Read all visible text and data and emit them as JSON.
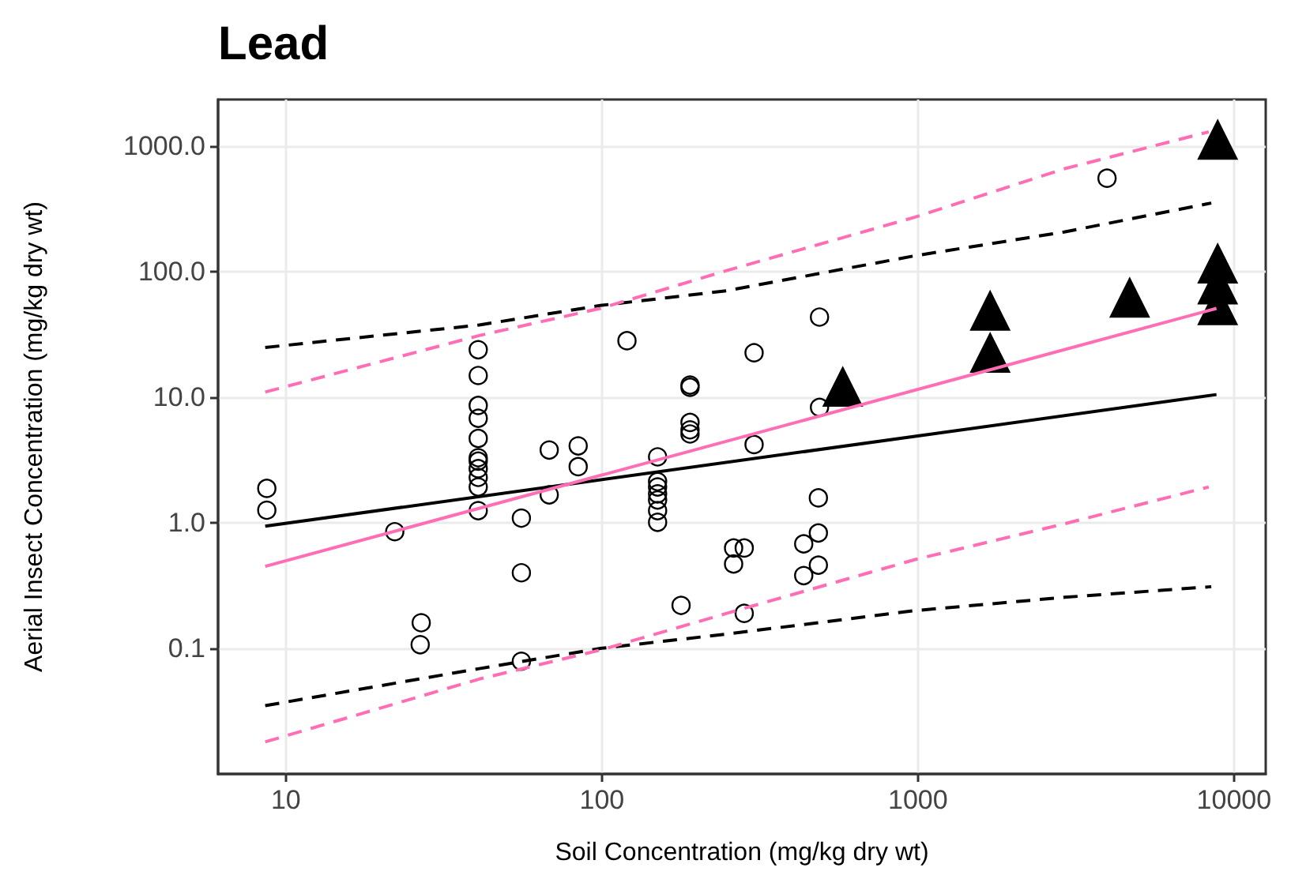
{
  "chart_data": {
    "type": "scatter",
    "title": "Lead",
    "xlabel": "Soil Concentration (mg/kg dry wt)",
    "ylabel": "Aerial Insect Concentration (mg/kg dry wt)",
    "log": "xy",
    "grid": true,
    "xlim": [
      6.1,
      12600
    ],
    "xticks": [
      10,
      100,
      1000,
      10000
    ],
    "ylim": [
      0.01,
      2350
    ],
    "yticks": [
      {
        "value": 0.1,
        "label": "0.1"
      },
      {
        "value": 1,
        "label": "1.0"
      },
      {
        "value": 10,
        "label": "10.0"
      },
      {
        "value": 100,
        "label": "100.0"
      },
      {
        "value": 1000,
        "label": "1000.0"
      }
    ],
    "series": [
      {
        "marker": "circle",
        "color": "#000000",
        "x": [
          8.7,
          8.7,
          22.1,
          26.8,
          26.6,
          40.6,
          40.6,
          40.6,
          40.6,
          40.6,
          40.6,
          40.6,
          40.6,
          40.6,
          40.6,
          40.6,
          55.6,
          55.6,
          55.6,
          68.1,
          68.1,
          84.1,
          84.1,
          120,
          150,
          150,
          150,
          150,
          150,
          150,
          150,
          190,
          190,
          190,
          190,
          190,
          178,
          261,
          261,
          282,
          282,
          303,
          303,
          488,
          488,
          484,
          484,
          435,
          484,
          435,
          3965
        ],
        "values": [
          1.88,
          1.26,
          0.85,
          0.16,
          0.107,
          23.9,
          14.9,
          8.6,
          6.8,
          4.7,
          3.3,
          3.1,
          2.7,
          2.3,
          1.93,
          1.25,
          1.09,
          0.4,
          0.079,
          3.8,
          1.67,
          4.1,
          2.8,
          28.2,
          3.35,
          2.13,
          1.93,
          1.7,
          1.52,
          1.25,
          1.01,
          12.5,
          12.0,
          6.3,
          5.5,
          5.1,
          0.22,
          0.63,
          0.47,
          0.63,
          0.19,
          22.6,
          4.2,
          43.5,
          8.3,
          1.58,
          0.83,
          0.68,
          0.46,
          0.38,
          555
        ]
      },
      {
        "marker": "triangle",
        "color": "#000000",
        "x": [
          578,
          1692,
          1692,
          4677,
          8880,
          8880,
          8880,
          8880
        ],
        "values": [
          12.1,
          48.8,
          22.6,
          62,
          1122,
          116,
          79,
          54
        ]
      },
      {
        "type": "line",
        "marker": "none",
        "line_style": "solid",
        "color": "#000000",
        "x": [
          8.6,
          8800
        ],
        "values": [
          0.94,
          10.5
        ]
      },
      {
        "type": "line",
        "marker": "none",
        "line_style": "dashed",
        "color": "#000000",
        "x": [
          8.6,
          40.9,
          98.9,
          248,
          980,
          2900,
          8475
        ],
        "values": [
          24.9,
          37.6,
          53.8,
          70.5,
          134,
          207,
          352
        ]
      },
      {
        "type": "line",
        "marker": "none",
        "line_style": "dashed",
        "color": "#000000",
        "x": [
          8.6,
          40.9,
          98.9,
          248,
          980,
          2900,
          8475
        ],
        "values": [
          0.035,
          0.069,
          0.1,
          0.13,
          0.2,
          0.255,
          0.31
        ]
      },
      {
        "type": "line",
        "marker": "none",
        "line_style": "solid",
        "color": "#ff6eb4",
        "x": [
          8.6,
          8800
        ],
        "values": [
          0.45,
          51
        ]
      },
      {
        "type": "line",
        "marker": "none",
        "line_style": "dashed",
        "color": "#ff6eb4",
        "x": [
          8.6,
          40.9,
          98.9,
          248,
          980,
          2900,
          8318
        ],
        "values": [
          11.0,
          31,
          51,
          102,
          272,
          659,
          1298
        ]
      },
      {
        "type": "line",
        "marker": "none",
        "line_style": "dashed",
        "color": "#ff6eb4",
        "x": [
          8.6,
          40.9,
          98.9,
          248,
          980,
          2900,
          8318
        ],
        "values": [
          0.018,
          0.057,
          0.097,
          0.19,
          0.51,
          0.98,
          1.93
        ]
      }
    ]
  }
}
